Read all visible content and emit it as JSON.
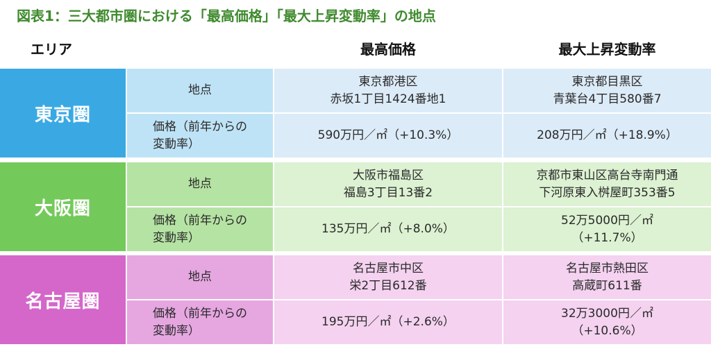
{
  "title": "図表1：三大都市圏における「最高価格」「最大上昇変動率」の地点",
  "header": {
    "area": "エリア",
    "max_price": "最高価格",
    "max_rate": "最大上昇変動率"
  },
  "labels": {
    "location": "地点",
    "price": "価格（前年からの\n変動率）"
  },
  "regions": [
    {
      "name": "東京圏",
      "color": "#3aa9e3",
      "max_price_location": "東京都港区\n赤坂1丁目1424番地1",
      "max_price_value": "590万円／㎡（+10.3%）",
      "max_rate_location": "東京都目黒区\n青葉台4丁目580番7",
      "max_rate_value": "208万円／㎡（+18.9%）"
    },
    {
      "name": "大阪圏",
      "color": "#74c95b",
      "max_price_location": "大阪市福島区\n福島3丁目13番2",
      "max_price_value": "135万円／㎡（+8.0%）",
      "max_rate_location": "京都市東山区高台寺南門通\n下河原東入桝屋町353番5",
      "max_rate_value": "52万5000円／㎡\n（+11.7%）"
    },
    {
      "name": "名古屋圏",
      "color": "#d467c9",
      "max_price_location": "名古屋市中区\n栄2丁目612番",
      "max_price_value": "195万円／㎡（+2.6%）",
      "max_rate_location": "名古屋市熱田区\n高蔵町611番",
      "max_rate_value": "32万3000円／㎡\n（+10.6%）"
    }
  ]
}
